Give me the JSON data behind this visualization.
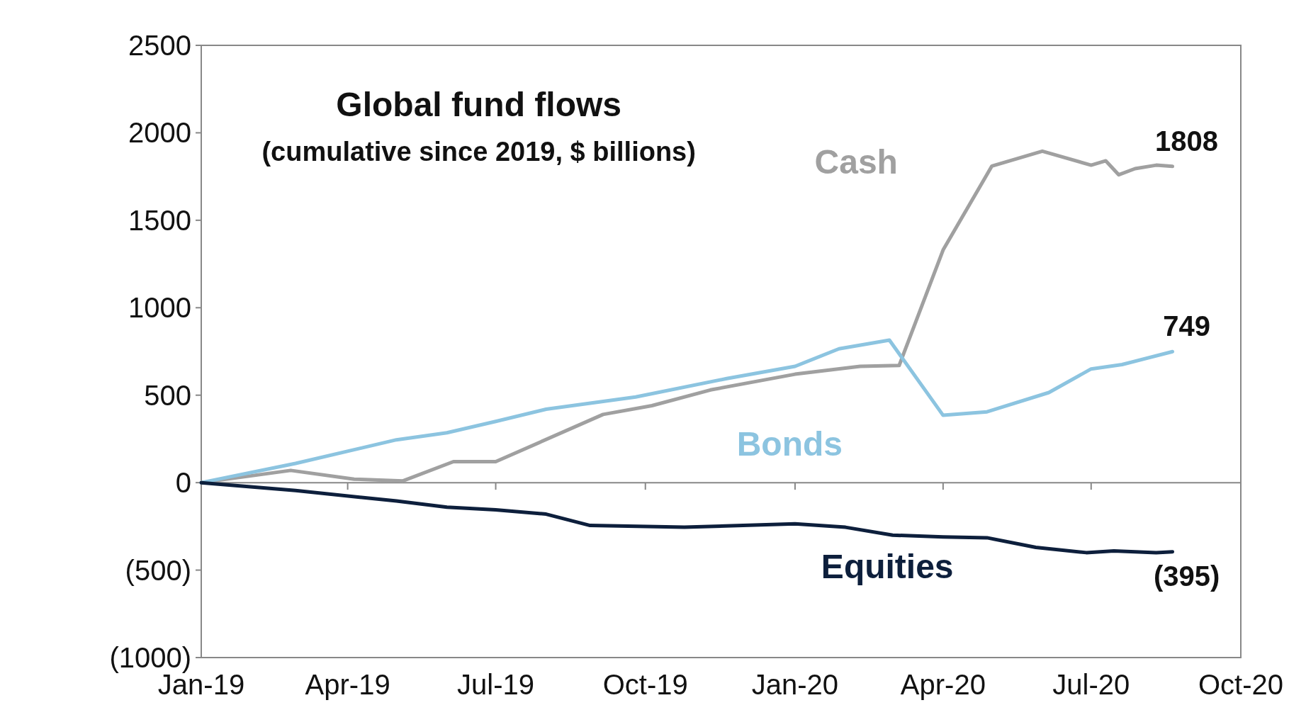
{
  "chart_data": {
    "type": "line",
    "title": "Global fund flows",
    "subtitle": "(cumulative since 2019, $ billions)",
    "ylim": [
      -1000,
      2500
    ],
    "yticks": [
      {
        "value": -1000,
        "label": "(1000)"
      },
      {
        "value": -500,
        "label": "(500)"
      },
      0,
      500,
      1000,
      1500,
      2000,
      2500
    ],
    "xlim": [
      "2019-01-01",
      "2020-10-01"
    ],
    "xticks": [
      {
        "value": "2019-01-01",
        "label": "Jan-19"
      },
      {
        "value": "2019-04-01",
        "label": "Apr-19"
      },
      {
        "value": "2019-07-01",
        "label": "Jul-19"
      },
      {
        "value": "2019-10-01",
        "label": "Oct-19"
      },
      {
        "value": "2020-01-01",
        "label": "Jan-20"
      },
      {
        "value": "2020-04-01",
        "label": "Apr-20"
      },
      {
        "value": "2020-07-01",
        "label": "Jul-20"
      },
      {
        "value": "2020-10-01",
        "label": "Oct-20"
      }
    ],
    "grid": false,
    "ref_lines": [
      {
        "axis": "y",
        "value": 0,
        "color": "#888888"
      }
    ],
    "marker": "none",
    "line_style": "solid",
    "series": [
      {
        "name": "Cash",
        "color": "#a0a0a0",
        "x": [
          "2019-01-01",
          "2019-02-25",
          "2019-04-05",
          "2019-05-05",
          "2019-06-05",
          "2019-07-01",
          "2019-09-05",
          "2019-10-05",
          "2019-11-10",
          "2020-01-01",
          "2020-02-10",
          "2020-03-05",
          "2020-04-01",
          "2020-05-01",
          "2020-06-01",
          "2020-07-01",
          "2020-07-10",
          "2020-07-18",
          "2020-07-28",
          "2020-08-10",
          "2020-08-20"
        ],
        "values": [
          0,
          70,
          20,
          10,
          120,
          120,
          390,
          440,
          530,
          620,
          665,
          670,
          1330,
          1810,
          1895,
          1815,
          1840,
          1760,
          1795,
          1815,
          1808
        ],
        "value_labels": [
          null,
          null,
          null,
          null,
          null,
          null,
          null,
          null,
          null,
          null,
          null,
          null,
          null,
          null,
          null,
          null,
          null,
          null,
          null,
          null,
          "1808"
        ]
      },
      {
        "name": "Bonds",
        "color": "#8cc4e0",
        "x": [
          "2019-01-01",
          "2019-02-28",
          "2019-05-01",
          "2019-06-01",
          "2019-07-01",
          "2019-08-01",
          "2019-09-25",
          "2019-11-20",
          "2020-01-01",
          "2020-01-28",
          "2020-02-28",
          "2020-04-01",
          "2020-04-28",
          "2020-06-05",
          "2020-07-01",
          "2020-07-20",
          "2020-08-20"
        ],
        "values": [
          0,
          110,
          245,
          285,
          350,
          420,
          490,
          595,
          665,
          765,
          815,
          385,
          405,
          515,
          650,
          675,
          749
        ],
        "value_labels": [
          null,
          null,
          null,
          null,
          null,
          null,
          null,
          null,
          null,
          null,
          null,
          null,
          null,
          null,
          null,
          null,
          "749"
        ]
      },
      {
        "name": "Equities",
        "color": "#0d1f3c",
        "x": [
          "2019-01-01",
          "2019-02-28",
          "2019-05-01",
          "2019-06-01",
          "2019-07-01",
          "2019-08-01",
          "2019-08-28",
          "2019-10-25",
          "2020-01-01",
          "2020-02-01",
          "2020-03-01",
          "2020-04-01",
          "2020-04-28",
          "2020-05-28",
          "2020-06-28",
          "2020-07-15",
          "2020-08-10",
          "2020-08-20"
        ],
        "values": [
          0,
          -45,
          -105,
          -140,
          -155,
          -180,
          -245,
          -255,
          -235,
          -255,
          -300,
          -310,
          -315,
          -370,
          -400,
          -390,
          -400,
          -395
        ],
        "value_labels": [
          null,
          null,
          null,
          null,
          null,
          null,
          null,
          null,
          null,
          null,
          null,
          null,
          null,
          null,
          null,
          null,
          null,
          "(395)"
        ]
      }
    ]
  }
}
